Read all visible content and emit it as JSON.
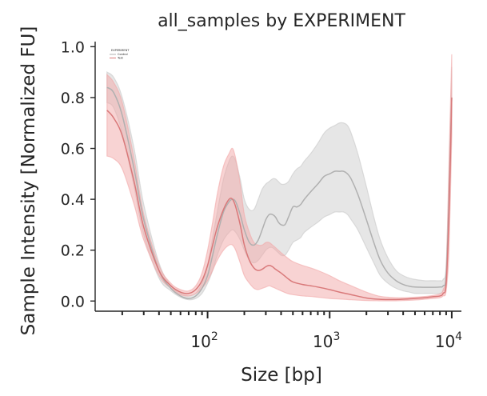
{
  "chart_data": {
    "type": "line",
    "title": "all_samples by EXPERIMENT",
    "xlabel": "Size [bp]",
    "ylabel": "Sample Intensity [Normalized FU]",
    "xscale": "log",
    "xlim": [
      12,
      12000
    ],
    "ylim": [
      -0.04,
      1.02
    ],
    "x_ticks": [
      {
        "value": 100,
        "base": "10",
        "exp": "2"
      },
      {
        "value": 1000,
        "base": "10",
        "exp": "3"
      },
      {
        "value": 10000,
        "base": "10",
        "exp": "4"
      }
    ],
    "y_ticks": [
      {
        "value": 0.0,
        "label": "0.0"
      },
      {
        "value": 0.2,
        "label": "0.2"
      },
      {
        "value": 0.4,
        "label": "0.4"
      },
      {
        "value": 0.6,
        "label": "0.6"
      },
      {
        "value": 0.8,
        "label": "0.8"
      },
      {
        "value": 1.0,
        "label": "1.0"
      }
    ],
    "grid": false,
    "legend": {
      "placement": "top-left",
      "title": "EXPERIMENT"
    },
    "series": [
      {
        "name": "Control",
        "color": "#b0b0b0",
        "fill": "#c8c8c8",
        "x": [
          15,
          17,
          20,
          25,
          30,
          40,
          50,
          60,
          70,
          80,
          90,
          100,
          110,
          120,
          135,
          150,
          160,
          170,
          185,
          200,
          220,
          240,
          260,
          280,
          300,
          320,
          340,
          360,
          380,
          400,
          430,
          460,
          500,
          540,
          580,
          620,
          700,
          800,
          900,
          1000,
          1100,
          1200,
          1300,
          1400,
          1500,
          1700,
          2000,
          2300,
          2600,
          3000,
          3500,
          4000,
          4500,
          5000,
          6000,
          7000,
          8000,
          8500,
          9000,
          9500,
          10000
        ],
        "y": [
          0.84,
          0.82,
          0.73,
          0.52,
          0.32,
          0.12,
          0.05,
          0.02,
          0.01,
          0.02,
          0.05,
          0.1,
          0.18,
          0.26,
          0.35,
          0.39,
          0.4,
          0.39,
          0.34,
          0.28,
          0.23,
          0.22,
          0.24,
          0.28,
          0.32,
          0.34,
          0.34,
          0.33,
          0.31,
          0.3,
          0.3,
          0.33,
          0.37,
          0.37,
          0.38,
          0.4,
          0.43,
          0.46,
          0.49,
          0.5,
          0.51,
          0.51,
          0.51,
          0.5,
          0.48,
          0.42,
          0.32,
          0.23,
          0.16,
          0.11,
          0.08,
          0.065,
          0.058,
          0.055,
          0.054,
          0.054,
          0.055,
          0.06,
          0.1,
          0.4,
          0.8
        ],
        "upper": [
          0.9,
          0.88,
          0.8,
          0.6,
          0.38,
          0.15,
          0.06,
          0.03,
          0.02,
          0.03,
          0.07,
          0.14,
          0.25,
          0.35,
          0.48,
          0.55,
          0.57,
          0.55,
          0.48,
          0.4,
          0.36,
          0.36,
          0.4,
          0.44,
          0.46,
          0.47,
          0.48,
          0.48,
          0.47,
          0.46,
          0.46,
          0.47,
          0.5,
          0.52,
          0.53,
          0.55,
          0.58,
          0.62,
          0.66,
          0.68,
          0.69,
          0.7,
          0.7,
          0.69,
          0.66,
          0.58,
          0.45,
          0.33,
          0.24,
          0.17,
          0.12,
          0.1,
          0.09,
          0.085,
          0.08,
          0.08,
          0.08,
          0.085,
          0.14,
          0.5,
          0.92
        ],
        "lower": [
          0.78,
          0.76,
          0.66,
          0.45,
          0.26,
          0.09,
          0.04,
          0.015,
          0.005,
          0.01,
          0.03,
          0.07,
          0.12,
          0.18,
          0.24,
          0.27,
          0.28,
          0.27,
          0.24,
          0.2,
          0.16,
          0.15,
          0.16,
          0.18,
          0.2,
          0.21,
          0.21,
          0.2,
          0.19,
          0.18,
          0.18,
          0.2,
          0.23,
          0.24,
          0.25,
          0.27,
          0.29,
          0.31,
          0.33,
          0.34,
          0.35,
          0.35,
          0.35,
          0.34,
          0.32,
          0.28,
          0.21,
          0.15,
          0.1,
          0.07,
          0.05,
          0.04,
          0.035,
          0.03,
          0.03,
          0.03,
          0.03,
          0.04,
          0.07,
          0.3,
          0.7
        ]
      },
      {
        "name": "Test",
        "color": "#d9797a",
        "fill": "#f2a8a8",
        "x": [
          15,
          17,
          20,
          25,
          30,
          40,
          50,
          60,
          70,
          80,
          90,
          100,
          110,
          120,
          135,
          150,
          160,
          170,
          185,
          200,
          220,
          240,
          260,
          280,
          300,
          320,
          340,
          360,
          400,
          450,
          500,
          600,
          700,
          800,
          1000,
          1200,
          1500,
          2000,
          2500,
          3000,
          3500,
          4000,
          5000,
          6000,
          7000,
          8000,
          8500,
          9000,
          9500,
          10000
        ],
        "y": [
          0.75,
          0.72,
          0.65,
          0.47,
          0.29,
          0.12,
          0.06,
          0.035,
          0.03,
          0.045,
          0.08,
          0.14,
          0.22,
          0.29,
          0.36,
          0.4,
          0.4,
          0.37,
          0.3,
          0.22,
          0.16,
          0.13,
          0.12,
          0.125,
          0.135,
          0.14,
          0.135,
          0.125,
          0.11,
          0.09,
          0.075,
          0.065,
          0.06,
          0.055,
          0.045,
          0.035,
          0.025,
          0.012,
          0.007,
          0.006,
          0.006,
          0.007,
          0.01,
          0.013,
          0.017,
          0.02,
          0.03,
          0.07,
          0.35,
          0.8
        ],
        "upper": [
          0.89,
          0.86,
          0.78,
          0.56,
          0.34,
          0.14,
          0.07,
          0.045,
          0.04,
          0.06,
          0.11,
          0.2,
          0.31,
          0.42,
          0.53,
          0.58,
          0.6,
          0.56,
          0.46,
          0.34,
          0.27,
          0.23,
          0.22,
          0.22,
          0.23,
          0.23,
          0.22,
          0.21,
          0.19,
          0.17,
          0.155,
          0.14,
          0.13,
          0.12,
          0.1,
          0.08,
          0.06,
          0.035,
          0.02,
          0.015,
          0.013,
          0.013,
          0.015,
          0.018,
          0.022,
          0.028,
          0.045,
          0.12,
          0.55,
          0.97
        ],
        "lower": [
          0.57,
          0.56,
          0.52,
          0.38,
          0.24,
          0.1,
          0.05,
          0.025,
          0.02,
          0.03,
          0.05,
          0.08,
          0.12,
          0.16,
          0.2,
          0.22,
          0.22,
          0.2,
          0.15,
          0.1,
          0.07,
          0.05,
          0.045,
          0.05,
          0.055,
          0.06,
          0.055,
          0.05,
          0.04,
          0.03,
          0.025,
          0.02,
          0.018,
          0.015,
          0.01,
          0.008,
          0.005,
          0.002,
          0.001,
          0.001,
          0.001,
          0.002,
          0.004,
          0.007,
          0.01,
          0.013,
          0.02,
          0.04,
          0.2,
          0.65
        ]
      }
    ]
  }
}
